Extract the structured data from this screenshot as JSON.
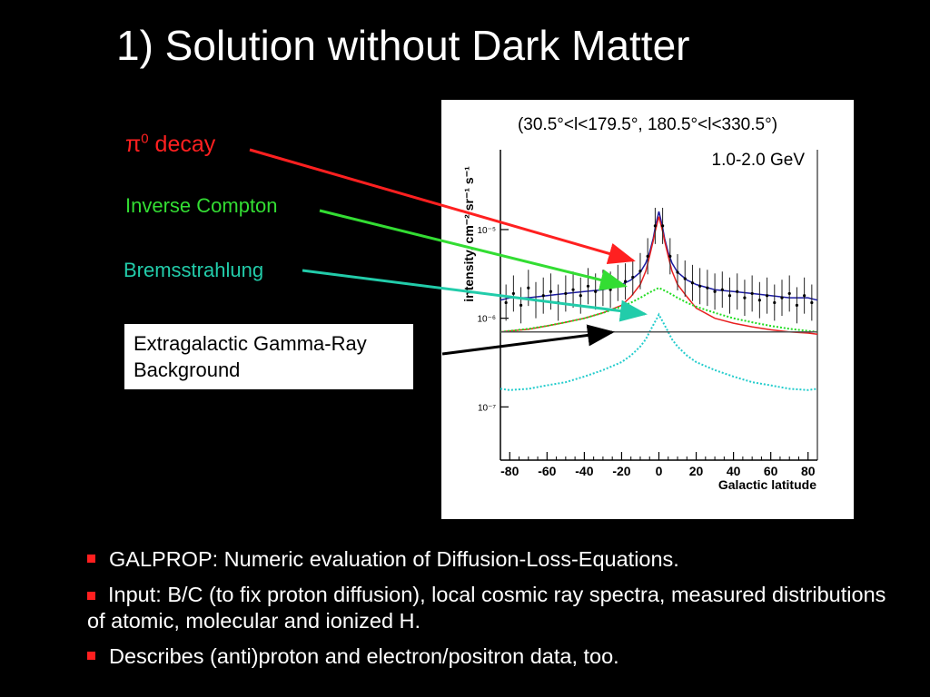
{
  "slide": {
    "title": "1) Solution without Dark Matter",
    "labels": {
      "pi0_symbol": "π",
      "pi0_sup": "0",
      "pi0_rest": " decay",
      "inverse_compton": "Inverse Compton",
      "bremsstrahlung": "Bremsstrahlung",
      "egb_line1": "Extragalactic Gamma-Ray",
      "egb_line2": "Background"
    },
    "bullets": [
      "GALPROP: Numeric evaluation of Diffusion-Loss-Equations.",
      "Input: B/C (to fix proton diffusion), local cosmic ray spectra, measured distributions of atomic, molecular and ionized H.",
      "Describes (anti)proton and electron/positron data, too."
    ],
    "colors": {
      "pi0": "#ff2020",
      "inverse_compton": "#33dd33",
      "bremsstrahlung": "#22ccaa",
      "egb": "#000000",
      "bullet": "#ff1f1f"
    }
  },
  "chart_data": {
    "type": "line",
    "title": "(30.5°<l<179.5°, 180.5°<l<330.5°)",
    "annotation": "1.0-2.0 GeV",
    "xlabel": "Galactic latitude",
    "ylabel": "intensity, cm⁻² sr⁻¹ s⁻¹",
    "xlim": [
      -85,
      85
    ],
    "ylim_log10": [
      -7.6,
      -4.1
    ],
    "xticks": [
      -80,
      -60,
      -40,
      -20,
      0,
      20,
      40,
      60,
      80
    ],
    "yticks": [
      {
        "label": "10⁻⁵",
        "log10": -5
      },
      {
        "label": "10⁻⁶",
        "log10": -6
      },
      {
        "label": "10⁻⁷",
        "log10": -7
      }
    ],
    "x": [
      -85,
      -80,
      -70,
      -60,
      -50,
      -40,
      -30,
      -20,
      -15,
      -10,
      -7,
      -5,
      -3,
      -2,
      -1,
      0,
      1,
      2,
      3,
      5,
      7,
      10,
      15,
      20,
      30,
      40,
      50,
      60,
      70,
      80,
      85
    ],
    "series": [
      {
        "name": "",
        "color": "#1a1aa0",
        "style": "solid",
        "values": [
          1.6e-06,
          1.7e-06,
          1.7e-06,
          1.8e-06,
          1.9e-06,
          2e-06,
          2.1e-06,
          2.4e-06,
          2.7e-06,
          3.3e-06,
          4.2e-06,
          5.5e-06,
          8e-06,
          1.05e-05,
          1.3e-05,
          1.6e-05,
          1.3e-05,
          1.05e-05,
          8e-06,
          5.5e-06,
          4.2e-06,
          3.3e-06,
          2.7e-06,
          2.4e-06,
          2.1e-06,
          2e-06,
          1.9e-06,
          1.8e-06,
          1.7e-06,
          1.7e-06,
          1.6e-06
        ]
      },
      {
        "name": "",
        "color": "#e82020",
        "style": "solid",
        "values": [
          7e-07,
          7.2e-07,
          7.5e-07,
          8.2e-07,
          9e-07,
          1e-06,
          1.15e-06,
          1.4e-06,
          1.75e-06,
          2.4e-06,
          3.4e-06,
          5e-06,
          7.5e-06,
          9.5e-06,
          1.15e-05,
          1.4e-05,
          1.15e-05,
          9.5e-06,
          7.5e-06,
          5e-06,
          3.4e-06,
          2.4e-06,
          1.75e-06,
          1.3e-06,
          1e-06,
          8.8e-07,
          8e-07,
          7.4e-07,
          7e-07,
          6.8e-07,
          6.6e-07
        ]
      },
      {
        "name": "",
        "color": "#22dd22",
        "style": "dotted",
        "values": [
          7e-07,
          7.2e-07,
          7.6e-07,
          8.2e-07,
          9e-07,
          1e-06,
          1.15e-06,
          1.35e-06,
          1.5e-06,
          1.7e-06,
          1.85e-06,
          1.95e-06,
          2.05e-06,
          2.1e-06,
          2.15e-06,
          2.2e-06,
          2.15e-06,
          2.1e-06,
          2.05e-06,
          1.95e-06,
          1.85e-06,
          1.7e-06,
          1.5e-06,
          1.35e-06,
          1.15e-06,
          1e-06,
          9e-07,
          8.2e-07,
          7.6e-07,
          7.2e-07,
          7e-07
        ]
      },
      {
        "name": "",
        "color": "#22cccc",
        "style": "dotted",
        "values": [
          1.6e-07,
          1.55e-07,
          1.6e-07,
          1.75e-07,
          1.9e-07,
          2.2e-07,
          2.6e-07,
          3.2e-07,
          3.8e-07,
          4.8e-07,
          5.8e-07,
          7e-07,
          8.4e-07,
          9.2e-07,
          1e-06,
          1.1e-06,
          1e-06,
          9.2e-07,
          8.4e-07,
          7e-07,
          5.8e-07,
          4.8e-07,
          3.8e-07,
          3.2e-07,
          2.6e-07,
          2.2e-07,
          1.9e-07,
          1.75e-07,
          1.6e-07,
          1.55e-07,
          1.6e-07
        ]
      },
      {
        "name": "",
        "color": "#555555",
        "style": "solid",
        "values": [
          7e-07,
          7e-07,
          7e-07,
          7e-07,
          7e-07,
          7e-07,
          7e-07,
          7e-07,
          7e-07,
          7e-07,
          7e-07,
          7e-07,
          7e-07,
          7e-07,
          7e-07,
          7e-07,
          7e-07,
          7e-07,
          7e-07,
          7e-07,
          7e-07,
          7e-07,
          7e-07,
          7e-07,
          7e-07,
          7e-07,
          7e-07,
          7e-07,
          7e-07,
          7e-07,
          7e-07
        ]
      }
    ],
    "data_points": {
      "x": [
        -82,
        -78,
        -74,
        -70,
        -66,
        -62,
        -58,
        -54,
        -50,
        -46,
        -42,
        -38,
        -34,
        -30,
        -26,
        -22,
        -18,
        -14,
        -10,
        -6,
        -2,
        2,
        6,
        10,
        14,
        18,
        22,
        26,
        30,
        34,
        38,
        42,
        46,
        50,
        54,
        58,
        62,
        66,
        70,
        74,
        78,
        82
      ],
      "y": [
        1.5e-06,
        1.9e-06,
        1.4e-06,
        2.2e-06,
        1.6e-06,
        1.8e-06,
        2e-06,
        1.5e-06,
        1.9e-06,
        2.1e-06,
        1.8e-06,
        2.3e-06,
        2e-06,
        2.2e-06,
        2.1e-06,
        2.5e-06,
        2.6e-06,
        2.9e-06,
        3.4e-06,
        5e-06,
        1.1e-05,
        1.1e-05,
        5e-06,
        3.3e-06,
        2.8e-06,
        2.5e-06,
        2.3e-06,
        2.2e-06,
        2e-06,
        2.1e-06,
        1.8e-06,
        2e-06,
        1.7e-06,
        1.9e-06,
        1.6e-06,
        1.8e-06,
        1.5e-06,
        1.7e-06,
        1.9e-06,
        1.4e-06,
        1.8e-06,
        1.5e-06
      ],
      "err_factor": 1.6
    }
  }
}
